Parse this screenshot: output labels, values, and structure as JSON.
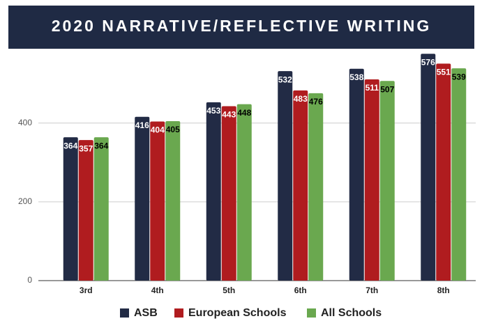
{
  "chart_data": {
    "type": "bar",
    "title": "2020 NARRATIVE/REFLECTIVE WRITING",
    "categories": [
      "3rd",
      "4th",
      "5th",
      "6th",
      "7th",
      "8th"
    ],
    "series": [
      {
        "name": "ASB",
        "color": "#222b45",
        "label_color": "#ffffff",
        "values": [
          364,
          416,
          453,
          532,
          538,
          576
        ]
      },
      {
        "name": "European Schools",
        "color": "#b01c1f",
        "label_color": "#ffffff",
        "values": [
          357,
          404,
          443,
          483,
          511,
          551
        ]
      },
      {
        "name": "All Schools",
        "color": "#6aa84f",
        "label_color": "#000000",
        "values": [
          364,
          405,
          448,
          476,
          507,
          539
        ]
      }
    ],
    "ylim": [
      0,
      580
    ],
    "yticks": [
      0,
      200,
      400
    ],
    "grid": true,
    "legend": "bottom"
  }
}
